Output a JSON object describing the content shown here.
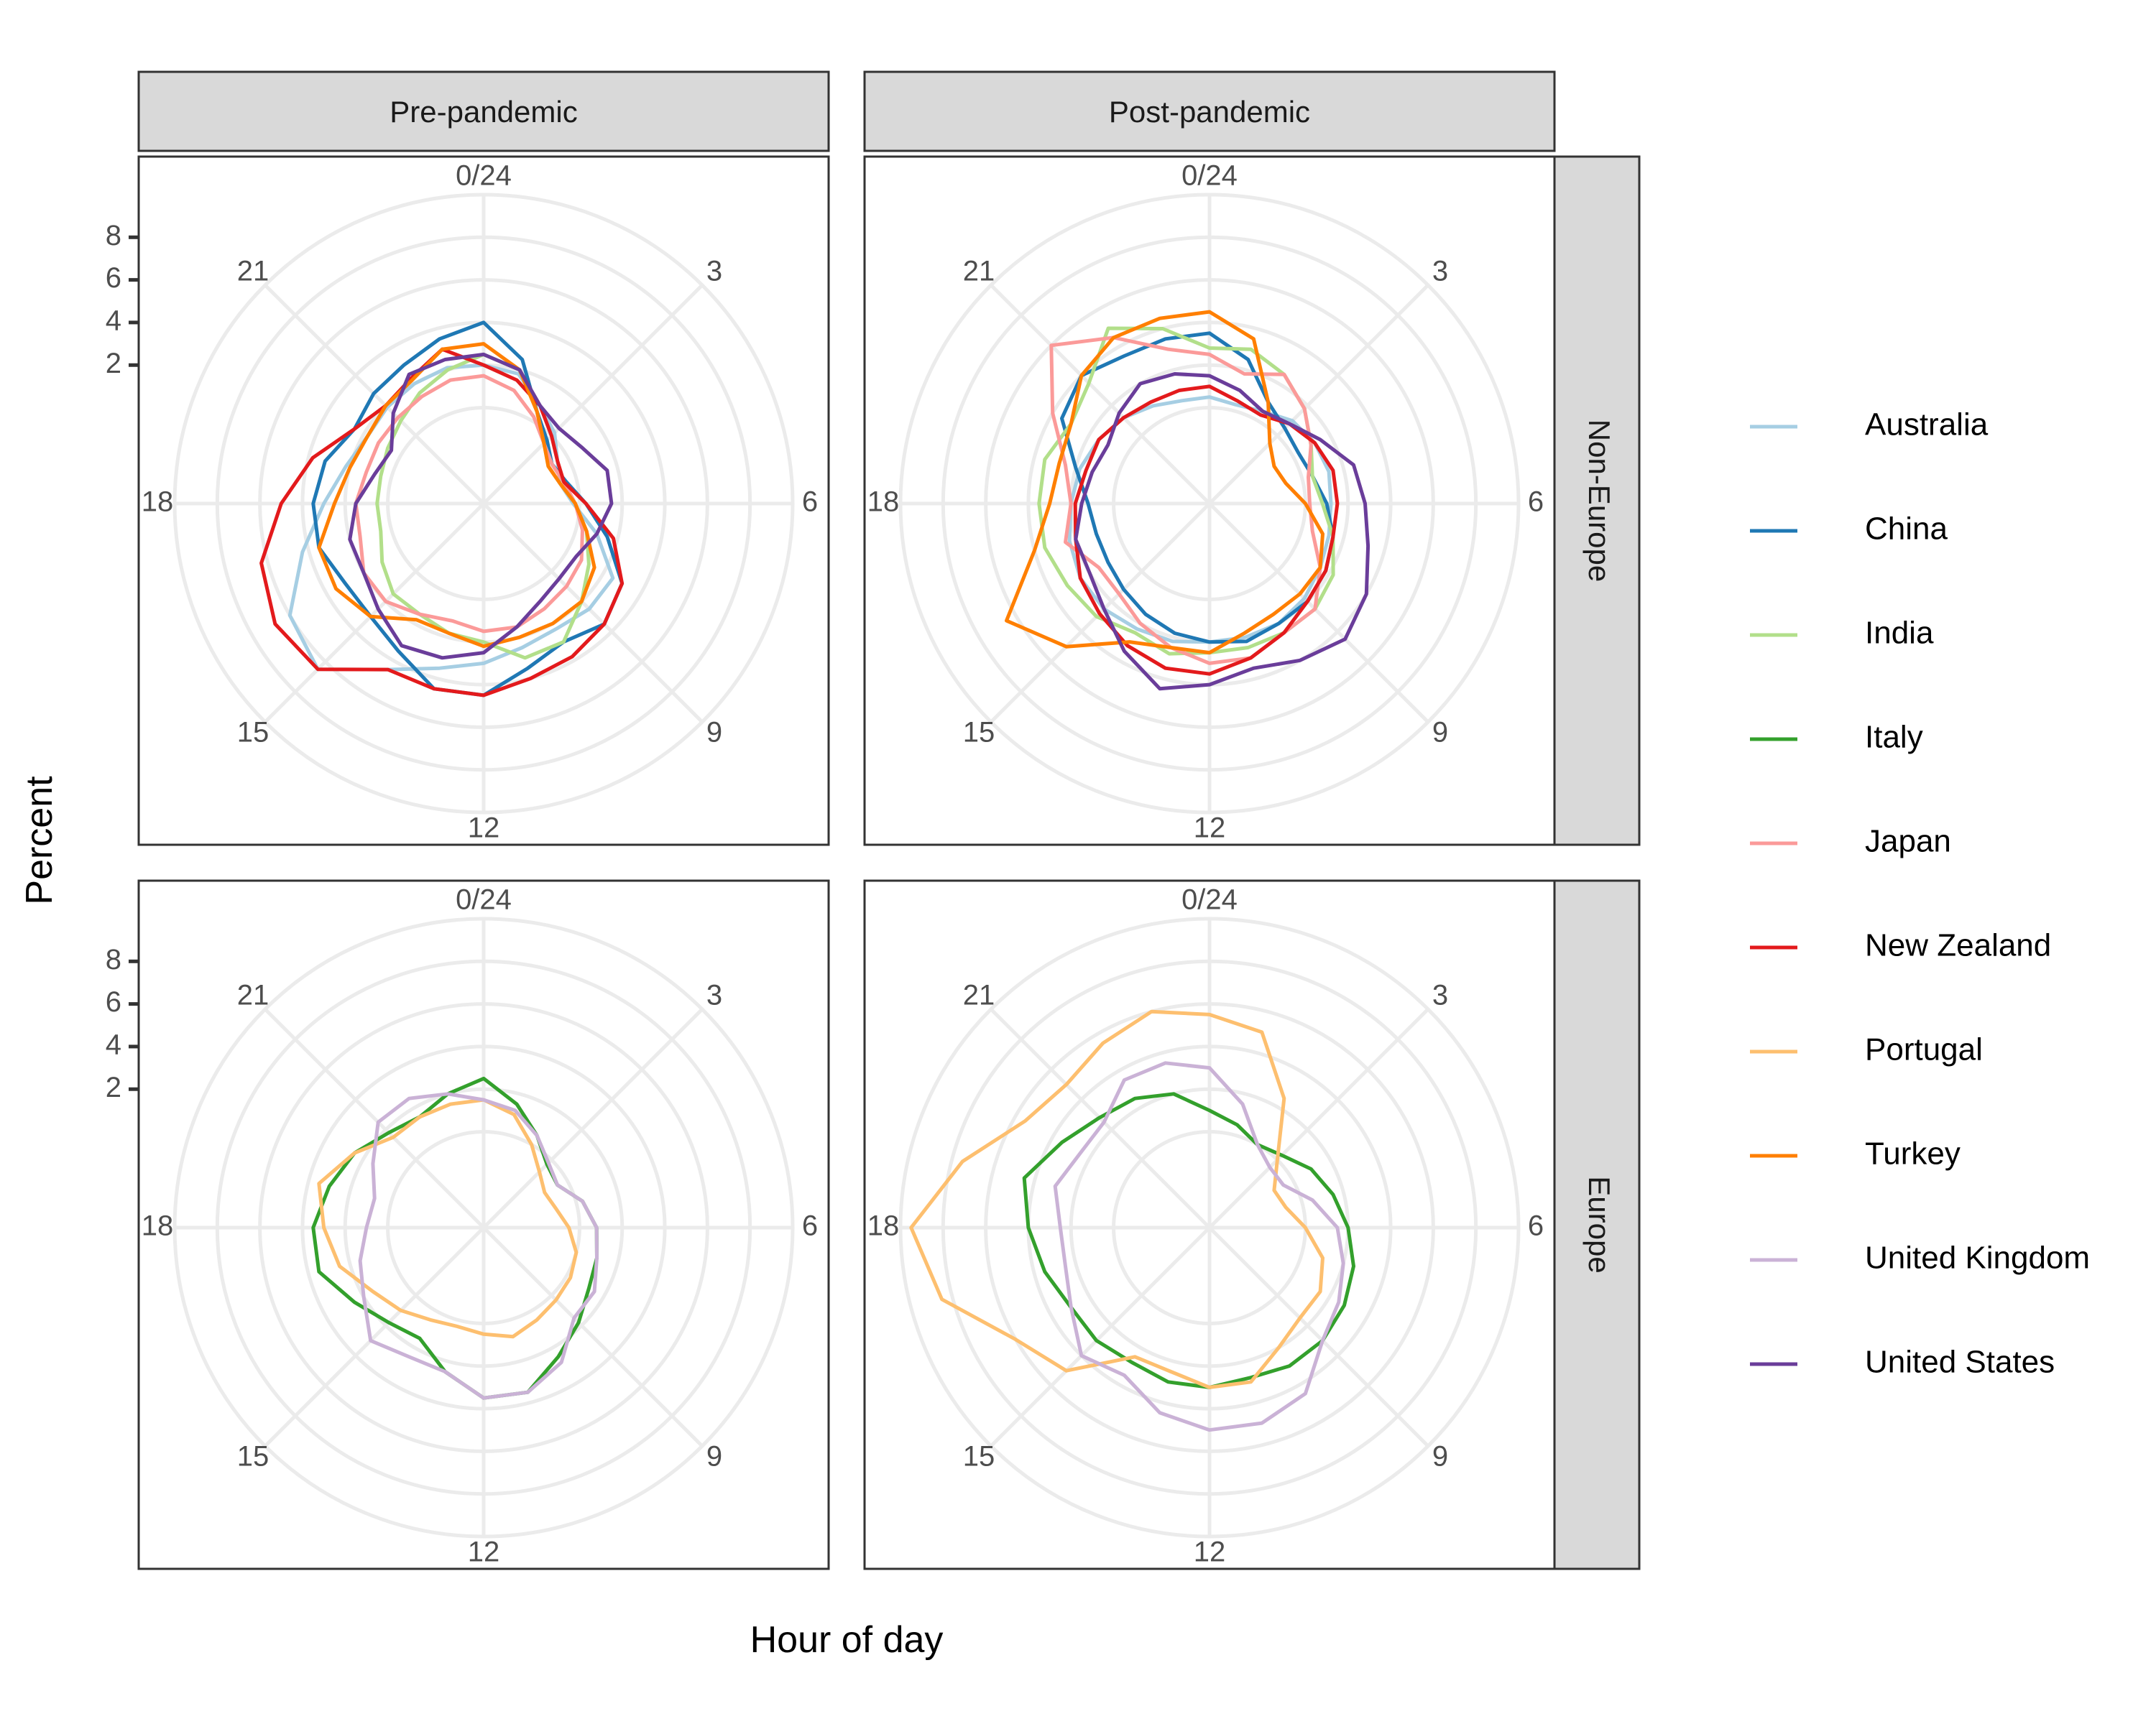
{
  "chart_data": {
    "type": "line",
    "coord": "polar",
    "theta_variable": "Hour of day",
    "radius_variable": "Percent",
    "xlabel": "Hour of day",
    "ylabel": "Percent",
    "hour_labels": [
      "0/24",
      "3",
      "6",
      "9",
      "12",
      "15",
      "18",
      "21"
    ],
    "y_ticks": [
      "2",
      "4",
      "6",
      "8"
    ],
    "y_tick_values": [
      2,
      4,
      6,
      8
    ],
    "ylim": [
      -4.5,
      10
    ],
    "grid": true,
    "legend_position": "right",
    "col_facets": [
      "Pre-pandemic",
      "Post-pandemic"
    ],
    "row_facets": [
      "Non-Europe",
      "Europe"
    ],
    "colors": {
      "Australia": "#a6cee3",
      "China": "#1f78b4",
      "India": "#b2df8a",
      "Italy": "#33a02c",
      "Japan": "#fb9a99",
      "New Zealand": "#e31a1c",
      "Portugal": "#fdbf6f",
      "Turkey": "#ff7f00",
      "United Kingdom": "#cab2d6",
      "United States": "#6a3d9a"
    },
    "legend": [
      "Australia",
      "China",
      "India",
      "Italy",
      "Japan",
      "New Zealand",
      "Portugal",
      "Turkey",
      "United Kingdom",
      "United States"
    ],
    "panels": [
      {
        "col": "Pre-pandemic",
        "row": "Non-Europe",
        "series": [
          {
            "name": "Australia",
            "values": [
              2.0,
              1.8,
              0.8,
              0.2,
              -0.5,
              -0.8,
              -0.3,
              1.0,
              2.5,
              2.5,
              2.3,
              2.5,
              3.0,
              3.5,
              4.5,
              6.5,
              6.0,
              4.3,
              3.0,
              2.2,
              1.8,
              1.9,
              2.0,
              2.1
            ]
          },
          {
            "name": "China",
            "values": [
              4.0,
              2.5,
              0.5,
              -0.3,
              -0.8,
              -0.5,
              0.3,
              1.5,
              3.0,
              3.5,
              3.0,
              3.5,
              4.5,
              4.5,
              3.5,
              3.0,
              3.0,
              3.5,
              3.5,
              3.2,
              2.5,
              2.8,
              3.0,
              3.5
            ]
          },
          {
            "name": "India",
            "values": [
              2.5,
              2.0,
              0.5,
              -0.5,
              -1.0,
              -0.8,
              -0.2,
              0.5,
              1.2,
              2.0,
              3.0,
              3.0,
              2.0,
              1.8,
              1.5,
              1.5,
              1.0,
              0.5,
              0.5,
              0.5,
              0.7,
              1.0,
              1.5,
              2.0
            ]
          },
          {
            "name": "Japan",
            "values": [
              1.5,
              1.0,
              0.2,
              -0.5,
              -0.8,
              -0.6,
              -0.2,
              0.3,
              0.8,
              1.0,
              1.2,
              1.5,
              1.5,
              1.2,
              1.5,
              2.0,
              2.0,
              1.5,
              1.5,
              1.2,
              1.2,
              1.2,
              1.3,
              1.5
            ]
          },
          {
            "name": "New Zealand",
            "values": [
              2.0,
              1.5,
              0.8,
              0.0,
              -0.5,
              -0.6,
              0.3,
              1.8,
              3.0,
              3.5,
              3.8,
              4.0,
              4.5,
              4.5,
              4.5,
              6.5,
              6.8,
              6.3,
              5.0,
              3.8,
              2.5,
              2.0,
              2.3,
              3.0
            ]
          },
          {
            "name": "Turkey",
            "values": [
              3.0,
              2.0,
              0.5,
              -0.5,
              -1.0,
              -0.8,
              -0.2,
              0.5,
              1.5,
              2.0,
              2.0,
              2.0,
              2.2,
              1.8,
              1.8,
              3.0,
              3.5,
              3.5,
              2.5,
              2.0,
              1.8,
              2.0,
              2.2,
              3.0
            ]
          },
          {
            "name": "United States",
            "values": [
              2.5,
              2.0,
              0.8,
              0.5,
              0.8,
              1.5,
              1.5,
              1.0,
              0.5,
              0.5,
              0.8,
              1.5,
              2.5,
              3.0,
              3.2,
              2.5,
              2.0,
              2.0,
              1.5,
              0.8,
              0.5,
              1.5,
              2.5,
              2.5
            ]
          }
        ]
      },
      {
        "col": "Post-pandemic",
        "row": "Non-Europe",
        "series": [
          {
            "name": "Australia",
            "values": [
              0.5,
              0.3,
              0.5,
              1.0,
              1.2,
              1.3,
              1.2,
              1.3,
              1.5,
              1.8,
              2.0,
              2.0,
              2.0,
              2.2,
              2.3,
              2.5,
              2.5,
              2.3,
              2.0,
              1.8,
              1.5,
              1.2,
              0.8,
              0.5
            ]
          },
          {
            "name": "China",
            "values": [
              3.5,
              2.5,
              1.0,
              0.5,
              0.3,
              0.5,
              1.0,
              1.5,
              1.8,
              2.0,
              2.0,
              2.2,
              2.0,
              1.8,
              1.5,
              1.2,
              1.0,
              1.0,
              1.2,
              2.0,
              3.5,
              4.0,
              3.5,
              3.5
            ]
          },
          {
            "name": "India",
            "values": [
              2.8,
              3.0,
              2.5,
              1.8,
              1.0,
              0.5,
              0.8,
              1.5,
              2.2,
              2.5,
              2.5,
              2.5,
              2.5,
              2.8,
              2.5,
              3.0,
              3.2,
              3.5,
              3.5,
              3.5,
              3.0,
              3.5,
              5.0,
              4.0
            ]
          },
          {
            "name": "Japan",
            "values": [
              2.5,
              1.8,
              2.5,
              1.8,
              1.0,
              0.3,
              0.2,
              0.5,
              1.5,
              2.5,
              2.5,
              3.0,
              3.0,
              2.5,
              2.0,
              1.5,
              1.5,
              2.5,
              2.0,
              2.5,
              4.0,
              6.0,
              4.5,
              3.0
            ]
          },
          {
            "name": "New Zealand",
            "values": [
              1.0,
              0.5,
              0.3,
              0.8,
              1.2,
              1.5,
              1.5,
              1.5,
              1.8,
              2.0,
              2.5,
              3.0,
              3.5,
              3.5,
              3.2,
              2.8,
              2.5,
              2.0,
              1.8,
              1.5,
              1.5,
              1.2,
              1.0,
              1.0
            ]
          },
          {
            "name": "Turkey",
            "values": [
              4.5,
              3.5,
              1.0,
              -0.5,
              -1.0,
              -0.8,
              0.0,
              1.0,
              1.5,
              1.5,
              1.5,
              1.8,
              2.5,
              2.5,
              3.0,
              5.0,
              6.5,
              4.0,
              3.0,
              2.8,
              3.0,
              4.0,
              4.5,
              4.5
            ]
          },
          {
            "name": "United States",
            "values": [
              1.5,
              1.0,
              0.5,
              0.8,
              1.5,
              2.5,
              2.8,
              3.2,
              4.0,
              4.5,
              4.0,
              3.5,
              4.0,
              4.5,
              3.5,
              2.5,
              2.0,
              2.0,
              1.5,
              1.2,
              1.0,
              1.5,
              2.0,
              1.8
            ]
          }
        ]
      },
      {
        "col": "Pre-pandemic",
        "row": "Europe",
        "series": [
          {
            "name": "Italy",
            "values": [
              2.5,
              1.5,
              0.5,
              -0.3,
              -0.5,
              0.3,
              0.8,
              1.0,
              1.2,
              1.8,
              2.5,
              3.5,
              3.5,
              2.5,
              1.5,
              1.8,
              2.5,
              3.5,
              3.5,
              3.0,
              2.5,
              1.8,
              1.5,
              2.0
            ]
          },
          {
            "name": "Portugal",
            "values": [
              1.5,
              1.0,
              0.0,
              -0.8,
              -1.2,
              -1.0,
              -0.5,
              0.0,
              0.2,
              0.3,
              0.5,
              0.8,
              0.5,
              0.3,
              0.5,
              1.0,
              1.5,
              2.5,
              3.0,
              3.5,
              2.5,
              1.5,
              1.5,
              1.5
            ]
          },
          {
            "name": "United Kingdom",
            "values": [
              1.5,
              1.2,
              0.5,
              -0.2,
              -0.5,
              0.3,
              0.8,
              1.0,
              1.5,
              1.5,
              2.8,
              3.5,
              3.5,
              2.5,
              2.5,
              3.0,
              2.0,
              1.5,
              1.0,
              0.8,
              1.5,
              2.5,
              2.5,
              2.0
            ]
          }
        ]
      },
      {
        "col": "Post-pandemic",
        "row": "Europe",
        "series": [
          {
            "name": "Italy",
            "values": [
              1.0,
              0.5,
              0.0,
              0.3,
              1.0,
              1.5,
              2.0,
              2.5,
              2.8,
              3.0,
              3.0,
              2.8,
              3.0,
              3.0,
              2.8,
              3.0,
              3.0,
              3.5,
              4.0,
              4.5,
              3.5,
              2.8,
              2.5,
              2.0
            ]
          },
          {
            "name": "Portugal",
            "values": [
              5.5,
              5.0,
              2.5,
              0.0,
              -1.0,
              -0.8,
              0.0,
              1.0,
              1.5,
              1.5,
              2.0,
              3.0,
              3.0,
              2.5,
              2.5,
              5.0,
              6.0,
              8.5,
              9.5,
              7.5,
              5.5,
              5.0,
              5.5,
              6.0
            ]
          },
          {
            "name": "United Kingdom",
            "values": [
              3.0,
              1.5,
              0.0,
              -0.5,
              -0.5,
              0.5,
              1.5,
              2.0,
              2.5,
              3.0,
              4.5,
              5.0,
              5.0,
              4.5,
              3.5,
              4.0,
              3.0,
              2.5,
              2.5,
              3.0,
              2.5,
              2.5,
              3.5,
              3.5
            ]
          }
        ]
      }
    ]
  }
}
